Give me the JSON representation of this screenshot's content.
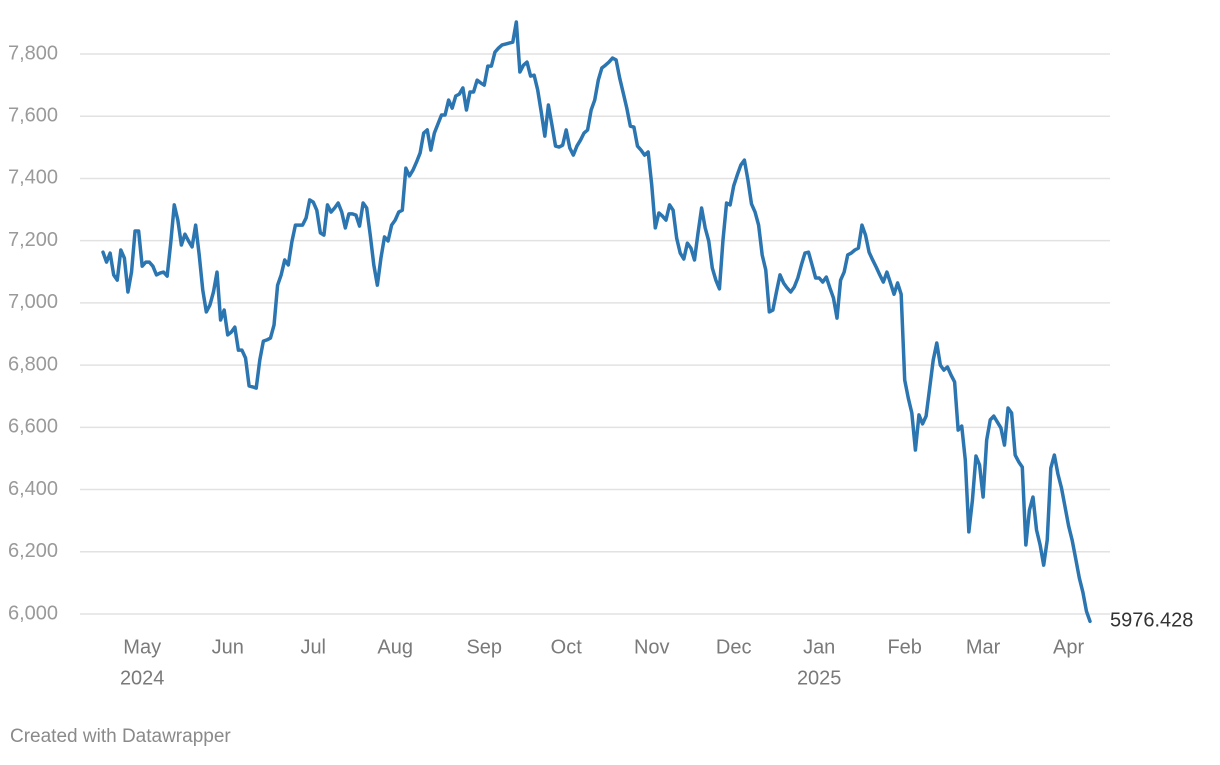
{
  "chart_data": {
    "type": "line",
    "footer": "Created with Datawrapper",
    "color": "#2b75b1",
    "grid": true,
    "ylim": [
      5940,
      7920
    ],
    "yticks": [
      {
        "value": 6000,
        "label": "6,000"
      },
      {
        "value": 6200,
        "label": "6,200"
      },
      {
        "value": 6400,
        "label": "6,400"
      },
      {
        "value": 6600,
        "label": "6,600"
      },
      {
        "value": 6800,
        "label": "6,800"
      },
      {
        "value": 7000,
        "label": "7,000"
      },
      {
        "value": 7200,
        "label": "7,200"
      },
      {
        "value": 7400,
        "label": "7,400"
      },
      {
        "value": 7600,
        "label": "7,600"
      },
      {
        "value": 7800,
        "label": "7,800"
      }
    ],
    "categories": [
      null,
      null,
      null,
      null,
      null,
      null,
      null,
      null,
      null,
      null,
      null,
      "May",
      null,
      null,
      null,
      null,
      null,
      null,
      null,
      null,
      null,
      null,
      null,
      null,
      null,
      null,
      null,
      null,
      null,
      null,
      null,
      null,
      null,
      null,
      null,
      "Jun",
      null,
      null,
      null,
      null,
      null,
      null,
      null,
      null,
      null,
      null,
      null,
      null,
      null,
      null,
      null,
      null,
      null,
      null,
      null,
      null,
      null,
      null,
      null,
      "Jul",
      null,
      null,
      null,
      null,
      null,
      null,
      null,
      null,
      null,
      null,
      null,
      null,
      null,
      null,
      null,
      null,
      null,
      null,
      null,
      null,
      null,
      null,
      "Aug",
      null,
      null,
      null,
      null,
      null,
      null,
      null,
      null,
      null,
      null,
      null,
      null,
      null,
      null,
      null,
      null,
      null,
      null,
      null,
      null,
      null,
      null,
      null,
      null,
      "Sep",
      null,
      null,
      null,
      null,
      null,
      null,
      null,
      null,
      null,
      null,
      null,
      null,
      null,
      null,
      null,
      null,
      null,
      null,
      null,
      null,
      null,
      null,
      "Oct",
      null,
      null,
      null,
      null,
      null,
      null,
      null,
      null,
      null,
      null,
      null,
      null,
      null,
      null,
      null,
      null,
      null,
      null,
      null,
      null,
      null,
      null,
      null,
      "Nov",
      null,
      null,
      null,
      null,
      null,
      null,
      null,
      null,
      null,
      null,
      null,
      null,
      null,
      null,
      null,
      null,
      null,
      null,
      null,
      null,
      null,
      null,
      "Dec",
      null,
      null,
      null,
      null,
      null,
      null,
      null,
      null,
      null,
      null,
      null,
      null,
      null,
      null,
      null,
      null,
      null,
      null,
      null,
      null,
      null,
      null,
      null,
      "Jan",
      null,
      null,
      null,
      null,
      null,
      null,
      null,
      null,
      null,
      null,
      null,
      null,
      null,
      null,
      null,
      null,
      null,
      null,
      null,
      null,
      null,
      null,
      null,
      "Feb",
      null,
      null,
      null,
      null,
      null,
      null,
      null,
      null,
      null,
      null,
      null,
      null,
      null,
      null,
      null,
      null,
      null,
      null,
      null,
      null,
      null,
      "Mar",
      null,
      null,
      null,
      null,
      null,
      null,
      null,
      null,
      null,
      null,
      null,
      null,
      null,
      null,
      null,
      null,
      null,
      null,
      null,
      null,
      null,
      null,
      null,
      "Apr",
      null,
      null,
      null,
      null,
      null,
      null
    ],
    "years": [
      null,
      null,
      null,
      null,
      null,
      null,
      null,
      null,
      null,
      null,
      null,
      "2024",
      null,
      null,
      null,
      null,
      null,
      null,
      null,
      null,
      null,
      null,
      null,
      null,
      null,
      null,
      null,
      null,
      null,
      null,
      null,
      null,
      null,
      null,
      null,
      null,
      null,
      null,
      null,
      null,
      null,
      null,
      null,
      null,
      null,
      null,
      null,
      null,
      null,
      null,
      null,
      null,
      null,
      null,
      null,
      null,
      null,
      null,
      null,
      null,
      null,
      null,
      null,
      null,
      null,
      null,
      null,
      null,
      null,
      null,
      null,
      null,
      null,
      null,
      null,
      null,
      null,
      null,
      null,
      null,
      null,
      null,
      null,
      null,
      null,
      null,
      null,
      null,
      null,
      null,
      null,
      null,
      null,
      null,
      null,
      null,
      null,
      null,
      null,
      null,
      null,
      null,
      null,
      null,
      null,
      null,
      null,
      null,
      null,
      null,
      null,
      null,
      null,
      null,
      null,
      null,
      null,
      null,
      null,
      null,
      null,
      null,
      null,
      null,
      null,
      null,
      null,
      null,
      null,
      null,
      null,
      null,
      null,
      null,
      null,
      null,
      null,
      null,
      null,
      null,
      null,
      null,
      null,
      null,
      null,
      null,
      null,
      null,
      null,
      null,
      null,
      null,
      null,
      null,
      null,
      null,
      null,
      null,
      null,
      null,
      null,
      null,
      null,
      null,
      null,
      null,
      null,
      null,
      null,
      null,
      null,
      null,
      null,
      null,
      null,
      null,
      null,
      null,
      null,
      null,
      null,
      null,
      null,
      null,
      null,
      null,
      null,
      null,
      null,
      null,
      null,
      null,
      null,
      null,
      null,
      null,
      null,
      null,
      null,
      null,
      null,
      "2025",
      null,
      null,
      null,
      null,
      null,
      null,
      null,
      null,
      null,
      null,
      null,
      null,
      null,
      null,
      null,
      null,
      null,
      null,
      null,
      null,
      null,
      null,
      null,
      null,
      null,
      null,
      null,
      null,
      null,
      null,
      null,
      null,
      null,
      null,
      null,
      null,
      null,
      null,
      null,
      null,
      null,
      null,
      null,
      null,
      null,
      null,
      null,
      null,
      null,
      null,
      null,
      null,
      null,
      null,
      null,
      null,
      null,
      null,
      null,
      null,
      null,
      null,
      null,
      null,
      null,
      null,
      null,
      null,
      null,
      null,
      null,
      null,
      null,
      null,
      null,
      null
    ],
    "values": [
      7163,
      7131,
      7160,
      7090,
      7073,
      7170,
      7144,
      7035,
      7099,
      7231,
      7231,
      7118,
      7131,
      7131,
      7118,
      7090,
      7096,
      7099,
      7086,
      7192,
      7315,
      7266,
      7186,
      7221,
      7199,
      7180,
      7250,
      7154,
      7041,
      6971,
      6993,
      7035,
      7099,
      6945,
      6977,
      6897,
      6906,
      6922,
      6848,
      6848,
      6823,
      6733,
      6730,
      6726,
      6816,
      6877,
      6881,
      6887,
      6929,
      7057,
      7090,
      7138,
      7122,
      7196,
      7250,
      7250,
      7250,
      7273,
      7331,
      7324,
      7298,
      7225,
      7218,
      7315,
      7292,
      7305,
      7321,
      7292,
      7241,
      7286,
      7286,
      7282,
      7247,
      7321,
      7305,
      7218,
      7122,
      7057,
      7144,
      7212,
      7199,
      7250,
      7266,
      7292,
      7298,
      7433,
      7408,
      7427,
      7453,
      7482,
      7546,
      7556,
      7491,
      7546,
      7575,
      7604,
      7604,
      7652,
      7626,
      7665,
      7671,
      7691,
      7620,
      7678,
      7678,
      7716,
      7707,
      7700,
      7761,
      7761,
      7806,
      7819,
      7829,
      7832,
      7835,
      7838,
      7903,
      7742,
      7764,
      7774,
      7729,
      7732,
      7684,
      7613,
      7536,
      7636,
      7572,
      7504,
      7501,
      7507,
      7556,
      7498,
      7475,
      7504,
      7523,
      7546,
      7556,
      7620,
      7652,
      7716,
      7755,
      7764,
      7774,
      7787,
      7781,
      7723,
      7675,
      7626,
      7568,
      7565,
      7504,
      7491,
      7475,
      7485,
      7379,
      7241,
      7289,
      7279,
      7266,
      7315,
      7298,
      7208,
      7160,
      7141,
      7192,
      7176,
      7138,
      7225,
      7305,
      7241,
      7199,
      7112,
      7073,
      7045,
      7202,
      7321,
      7315,
      7376,
      7411,
      7443,
      7459,
      7395,
      7318,
      7292,
      7250,
      7154,
      7106,
      6971,
      6977,
      7035,
      7090,
      7064,
      7048,
      7035,
      7051,
      7080,
      7122,
      7160,
      7163,
      7122,
      7080,
      7080,
      7067,
      7083,
      7048,
      7016,
      6951,
      7073,
      7099,
      7154,
      7160,
      7170,
      7176,
      7250,
      7218,
      7163,
      7138,
      7115,
      7090,
      7067,
      7099,
      7064,
      7028,
      7064,
      7028,
      6752,
      6694,
      6646,
      6527,
      6640,
      6611,
      6636,
      6726,
      6816,
      6871,
      6800,
      6784,
      6794,
      6768,
      6746,
      6591,
      6604,
      6495,
      6264,
      6366,
      6508,
      6479,
      6376,
      6559,
      6624,
      6636,
      6617,
      6598,
      6543,
      6662,
      6646,
      6511,
      6489,
      6472,
      6222,
      6334,
      6376,
      6270,
      6222,
      6157,
      6238,
      6469,
      6511,
      6450,
      6405,
      6344,
      6283,
      6237,
      6177,
      6116,
      6070,
      6009,
      5976.428
    ]
  }
}
